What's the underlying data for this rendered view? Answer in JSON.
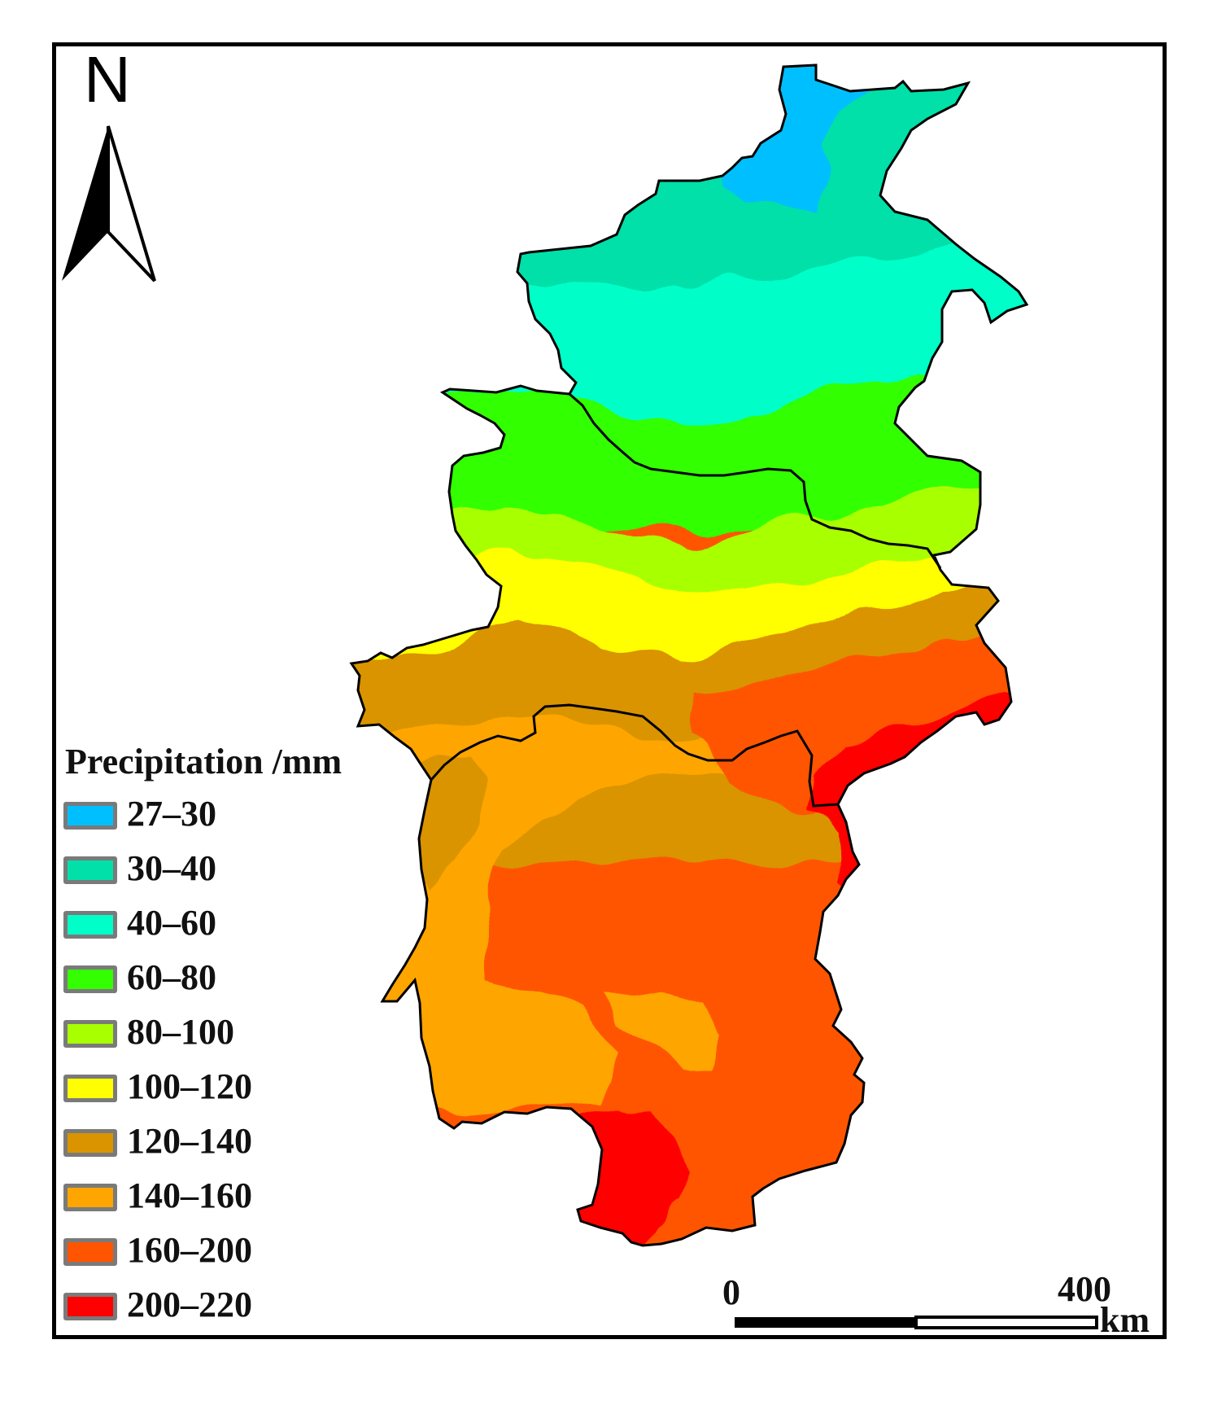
{
  "north_arrow": {
    "label": "N",
    "icon": "north-arrow-icon"
  },
  "legend": {
    "title": "Precipitation /mm",
    "classes": [
      {
        "label": "27–30",
        "color": "#00bfff"
      },
      {
        "label": "30–40",
        "color": "#00e0a8"
      },
      {
        "label": "40–60",
        "color": "#00ffc8"
      },
      {
        "label": "60–80",
        "color": "#33ff00"
      },
      {
        "label": "80–100",
        "color": "#a8ff00"
      },
      {
        "label": "100–120",
        "color": "#ffff00"
      },
      {
        "label": "120–140",
        "color": "#d99400"
      },
      {
        "label": "140–160",
        "color": "#ffa500"
      },
      {
        "label": "160–200",
        "color": "#ff5500"
      },
      {
        "label": "200–220",
        "color": "#ff0000"
      }
    ]
  },
  "scale_bar": {
    "start_label": "0",
    "end_label": "400",
    "unit": "km"
  }
}
